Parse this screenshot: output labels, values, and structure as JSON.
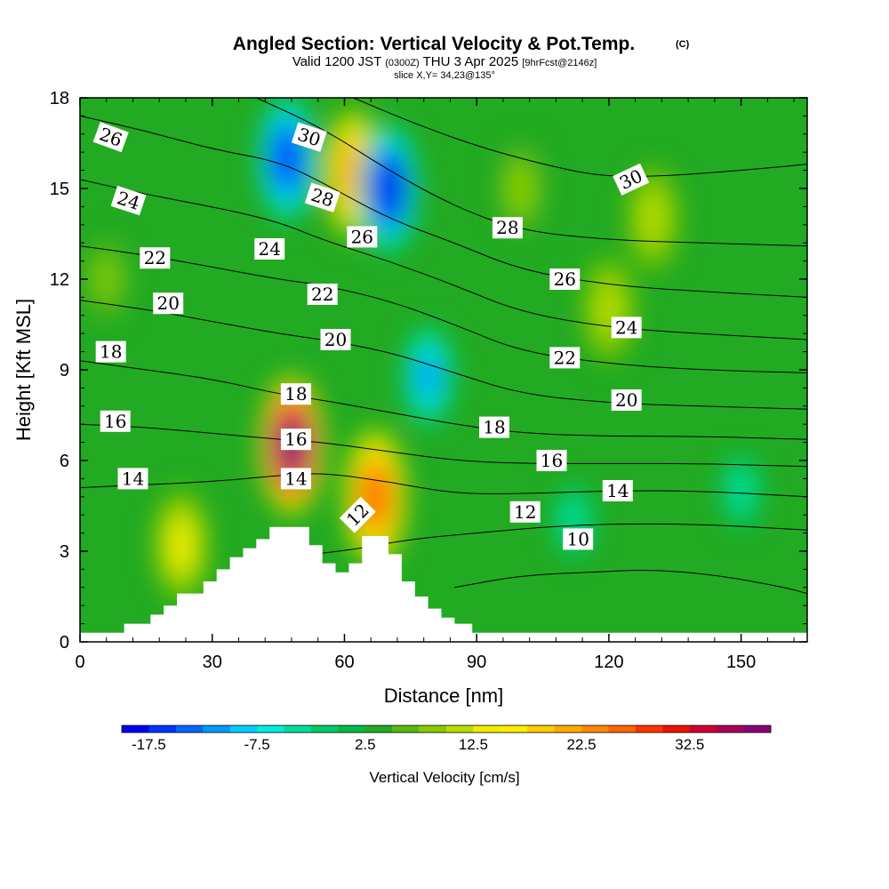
{
  "title": {
    "main": "Angled Section: Vertical Velocity & Pot.Temp.",
    "main_suffix": "(C)",
    "valid_prefix": "Valid 1200 JST",
    "valid_utc": "(0300Z)",
    "valid_date": "THU 3 Apr 2025",
    "forecast": "[9hrFcst@2146z]",
    "slice": "slice X,Y= 34,23@135°"
  },
  "chart_data": {
    "type": "heatmap",
    "xlabel": "Distance [nm]",
    "ylabel": "Height [Kft MSL]",
    "xlim": [
      0,
      165
    ],
    "ylim": [
      0,
      18
    ],
    "x_ticks": [
      "0",
      "30",
      "60",
      "90",
      "120",
      "150"
    ],
    "y_ticks": [
      "0",
      "3",
      "6",
      "9",
      "12",
      "15",
      "18"
    ],
    "x_tick_values": [
      0,
      30,
      60,
      90,
      120,
      150
    ],
    "y_tick_values": [
      0,
      3,
      6,
      9,
      12,
      15,
      18
    ],
    "colorbar": {
      "label": "Vertical Velocity [cm/s]",
      "tick_labels": [
        "-17.5",
        "-7.5",
        "2.5",
        "12.5",
        "22.5",
        "32.5"
      ],
      "tick_values": [
        -17.5,
        -7.5,
        2.5,
        12.5,
        22.5,
        32.5
      ],
      "range": [
        -20,
        40
      ],
      "colors": [
        "#0000ee",
        "#0033ff",
        "#0066ff",
        "#0099ff",
        "#00ccff",
        "#00eedd",
        "#00dd99",
        "#00cc66",
        "#00bb44",
        "#22aa22",
        "#55bb11",
        "#88cc00",
        "#bbdd00",
        "#eeee00",
        "#ffee00",
        "#ffcc00",
        "#ffaa00",
        "#ff8800",
        "#ff6600",
        "#ff3300",
        "#ee1100",
        "#cc0033",
        "#aa0055",
        "#880077"
      ]
    },
    "velocity_features": [
      {
        "x": 48,
        "y": 6.5,
        "value": 38
      },
      {
        "x": 67,
        "y": 4.8,
        "value": 25
      },
      {
        "x": 62,
        "y": 15.5,
        "value": 20
      },
      {
        "x": 23,
        "y": 3.2,
        "value": 14
      },
      {
        "x": 70,
        "y": 15,
        "value": -18
      },
      {
        "x": 47,
        "y": 16,
        "value": -17
      },
      {
        "x": 79,
        "y": 8.8,
        "value": -11
      },
      {
        "x": 150,
        "y": 5,
        "value": -5
      },
      {
        "x": 112,
        "y": 4,
        "value": -5
      },
      {
        "x": 130,
        "y": 14,
        "value": 12
      },
      {
        "x": 120,
        "y": 11,
        "value": 12
      },
      {
        "x": 6,
        "y": 12,
        "value": 8
      },
      {
        "x": 100,
        "y": 15,
        "value": 9
      }
    ],
    "theta_contours": [
      {
        "value": 10,
        "label": "10",
        "points": [
          [
            85,
            1.8
          ],
          [
            100,
            2.2
          ],
          [
            115,
            2.3
          ],
          [
            130,
            2.4
          ],
          [
            145,
            2.2
          ],
          [
            160,
            1.8
          ],
          [
            165,
            1.6
          ]
        ]
      },
      {
        "value": 12,
        "label": "12",
        "points": [
          [
            30,
            1.8
          ],
          [
            45,
            2.8
          ],
          [
            60,
            3.0
          ],
          [
            75,
            3.4
          ],
          [
            90,
            3.6
          ],
          [
            105,
            3.8
          ],
          [
            120,
            3.9
          ],
          [
            140,
            3.9
          ],
          [
            165,
            3.7
          ]
        ]
      },
      {
        "value": 14,
        "label": "14",
        "points": [
          [
            0,
            5.1
          ],
          [
            15,
            5.2
          ],
          [
            30,
            5.3
          ],
          [
            45,
            5.5
          ],
          [
            55,
            5.6
          ],
          [
            70,
            5.3
          ],
          [
            85,
            4.9
          ],
          [
            100,
            4.9
          ],
          [
            120,
            5.0
          ],
          [
            140,
            5.0
          ],
          [
            165,
            4.8
          ]
        ]
      },
      {
        "value": 16,
        "label": "16",
        "points": [
          [
            0,
            7.2
          ],
          [
            15,
            7.1
          ],
          [
            30,
            6.9
          ],
          [
            45,
            6.7
          ],
          [
            55,
            6.6
          ],
          [
            70,
            6.3
          ],
          [
            85,
            6.0
          ],
          [
            100,
            5.9
          ],
          [
            120,
            5.9
          ],
          [
            140,
            5.9
          ],
          [
            165,
            5.8
          ]
        ]
      },
      {
        "value": 18,
        "label": "18",
        "points": [
          [
            0,
            9.3
          ],
          [
            15,
            9.0
          ],
          [
            30,
            8.7
          ],
          [
            45,
            8.2
          ],
          [
            55,
            8.0
          ],
          [
            70,
            7.6
          ],
          [
            85,
            7.2
          ],
          [
            100,
            6.9
          ],
          [
            120,
            6.8
          ],
          [
            140,
            6.8
          ],
          [
            165,
            6.7
          ]
        ]
      },
      {
        "value": 20,
        "label": "20",
        "points": [
          [
            0,
            11.3
          ],
          [
            15,
            11.0
          ],
          [
            30,
            10.6
          ],
          [
            45,
            10.2
          ],
          [
            55,
            10.0
          ],
          [
            70,
            9.6
          ],
          [
            85,
            8.9
          ],
          [
            100,
            8.2
          ],
          [
            120,
            7.9
          ],
          [
            140,
            7.8
          ],
          [
            165,
            7.7
          ]
        ]
      },
      {
        "value": 22,
        "label": "22",
        "points": [
          [
            0,
            13.1
          ],
          [
            15,
            12.8
          ],
          [
            30,
            12.4
          ],
          [
            45,
            12.0
          ],
          [
            55,
            11.8
          ],
          [
            70,
            11.3
          ],
          [
            85,
            10.5
          ],
          [
            100,
            9.6
          ],
          [
            120,
            9.2
          ],
          [
            140,
            9.0
          ],
          [
            165,
            8.9
          ]
        ]
      },
      {
        "value": 24,
        "label": "24",
        "points": [
          [
            0,
            15.3
          ],
          [
            15,
            14.8
          ],
          [
            30,
            14.4
          ],
          [
            45,
            13.9
          ],
          [
            55,
            13.3
          ],
          [
            70,
            12.6
          ],
          [
            85,
            11.8
          ],
          [
            100,
            10.9
          ],
          [
            120,
            10.4
          ],
          [
            140,
            10.2
          ],
          [
            165,
            10.0
          ]
        ]
      },
      {
        "value": 26,
        "label": "26",
        "points": [
          [
            0,
            17.4
          ],
          [
            15,
            16.9
          ],
          [
            30,
            16.3
          ],
          [
            45,
            15.9
          ],
          [
            55,
            15.2
          ],
          [
            70,
            14.0
          ],
          [
            85,
            13.2
          ],
          [
            100,
            12.3
          ],
          [
            120,
            11.8
          ],
          [
            140,
            11.6
          ],
          [
            165,
            11.4
          ]
        ]
      },
      {
        "value": 28,
        "label": "28",
        "points": [
          [
            40,
            18.0
          ],
          [
            55,
            17.0
          ],
          [
            70,
            15.6
          ],
          [
            85,
            14.4
          ],
          [
            100,
            13.6
          ],
          [
            120,
            13.3
          ],
          [
            140,
            13.2
          ],
          [
            165,
            13.1
          ]
        ]
      },
      {
        "value": 30,
        "label": "30",
        "points": [
          [
            62,
            18.0
          ],
          [
            75,
            17.2
          ],
          [
            90,
            16.4
          ],
          [
            105,
            15.8
          ],
          [
            118,
            15.4
          ],
          [
            132,
            15.4
          ],
          [
            150,
            15.6
          ],
          [
            165,
            15.8
          ]
        ]
      }
    ],
    "contour_labels": [
      {
        "text": "26",
        "x": 7,
        "y": 16.7,
        "angle": 20
      },
      {
        "text": "24",
        "x": 11,
        "y": 14.6,
        "angle": 18
      },
      {
        "text": "22",
        "x": 17,
        "y": 12.7,
        "angle": 0
      },
      {
        "text": "20",
        "x": 20,
        "y": 11.2,
        "angle": 0
      },
      {
        "text": "18",
        "x": 7,
        "y": 9.6,
        "angle": 0
      },
      {
        "text": "16",
        "x": 8,
        "y": 7.3,
        "angle": 0
      },
      {
        "text": "14",
        "x": 12,
        "y": 5.4,
        "angle": 0
      },
      {
        "text": "30",
        "x": 52,
        "y": 16.7,
        "angle": 18
      },
      {
        "text": "28",
        "x": 55,
        "y": 14.7,
        "angle": 18
      },
      {
        "text": "24",
        "x": 43,
        "y": 13.0,
        "angle": 0
      },
      {
        "text": "26",
        "x": 64,
        "y": 13.4,
        "angle": 0
      },
      {
        "text": "22",
        "x": 55,
        "y": 11.5,
        "angle": 0
      },
      {
        "text": "20",
        "x": 58,
        "y": 10.0,
        "angle": 0
      },
      {
        "text": "18",
        "x": 49,
        "y": 8.2,
        "angle": 0
      },
      {
        "text": "16",
        "x": 49,
        "y": 6.7,
        "angle": 0
      },
      {
        "text": "14",
        "x": 49,
        "y": 5.4,
        "angle": 0
      },
      {
        "text": "12",
        "x": 63,
        "y": 4.2,
        "angle": -45
      },
      {
        "text": "30",
        "x": 125,
        "y": 15.3,
        "angle": -25
      },
      {
        "text": "28",
        "x": 97,
        "y": 13.7,
        "angle": 0
      },
      {
        "text": "26",
        "x": 110,
        "y": 12.0,
        "angle": 0
      },
      {
        "text": "24",
        "x": 124,
        "y": 10.4,
        "angle": 0
      },
      {
        "text": "22",
        "x": 110,
        "y": 9.4,
        "angle": 0
      },
      {
        "text": "20",
        "x": 124,
        "y": 8.0,
        "angle": 0
      },
      {
        "text": "18",
        "x": 94,
        "y": 7.1,
        "angle": 0
      },
      {
        "text": "16",
        "x": 107,
        "y": 6.0,
        "angle": 0
      },
      {
        "text": "14",
        "x": 122,
        "y": 5.0,
        "angle": 0
      },
      {
        "text": "12",
        "x": 101,
        "y": 4.3,
        "angle": 0
      },
      {
        "text": "10",
        "x": 113,
        "y": 3.4,
        "angle": 0
      }
    ],
    "terrain": [
      [
        0,
        0.3
      ],
      [
        10,
        0.3
      ],
      [
        10,
        0.6
      ],
      [
        16,
        0.6
      ],
      [
        16,
        0.9
      ],
      [
        19,
        0.9
      ],
      [
        19,
        1.2
      ],
      [
        22,
        1.2
      ],
      [
        22,
        1.6
      ],
      [
        28,
        1.6
      ],
      [
        28,
        2.0
      ],
      [
        31,
        2.0
      ],
      [
        31,
        2.4
      ],
      [
        34,
        2.4
      ],
      [
        34,
        2.8
      ],
      [
        37,
        2.8
      ],
      [
        37,
        3.1
      ],
      [
        40,
        3.1
      ],
      [
        40,
        3.4
      ],
      [
        43,
        3.4
      ],
      [
        43,
        3.8
      ],
      [
        52,
        3.8
      ],
      [
        52,
        3.2
      ],
      [
        55,
        3.2
      ],
      [
        55,
        2.6
      ],
      [
        58,
        2.6
      ],
      [
        58,
        2.3
      ],
      [
        61,
        2.3
      ],
      [
        61,
        2.6
      ],
      [
        64,
        2.6
      ],
      [
        64,
        3.5
      ],
      [
        70,
        3.5
      ],
      [
        70,
        2.9
      ],
      [
        73,
        2.9
      ],
      [
        73,
        2.0
      ],
      [
        76,
        2.0
      ],
      [
        76,
        1.5
      ],
      [
        79,
        1.5
      ],
      [
        79,
        1.1
      ],
      [
        82,
        1.1
      ],
      [
        82,
        0.8
      ],
      [
        85,
        0.8
      ],
      [
        85,
        0.6
      ],
      [
        89,
        0.6
      ],
      [
        89,
        0.3
      ],
      [
        165,
        0.3
      ]
    ]
  }
}
